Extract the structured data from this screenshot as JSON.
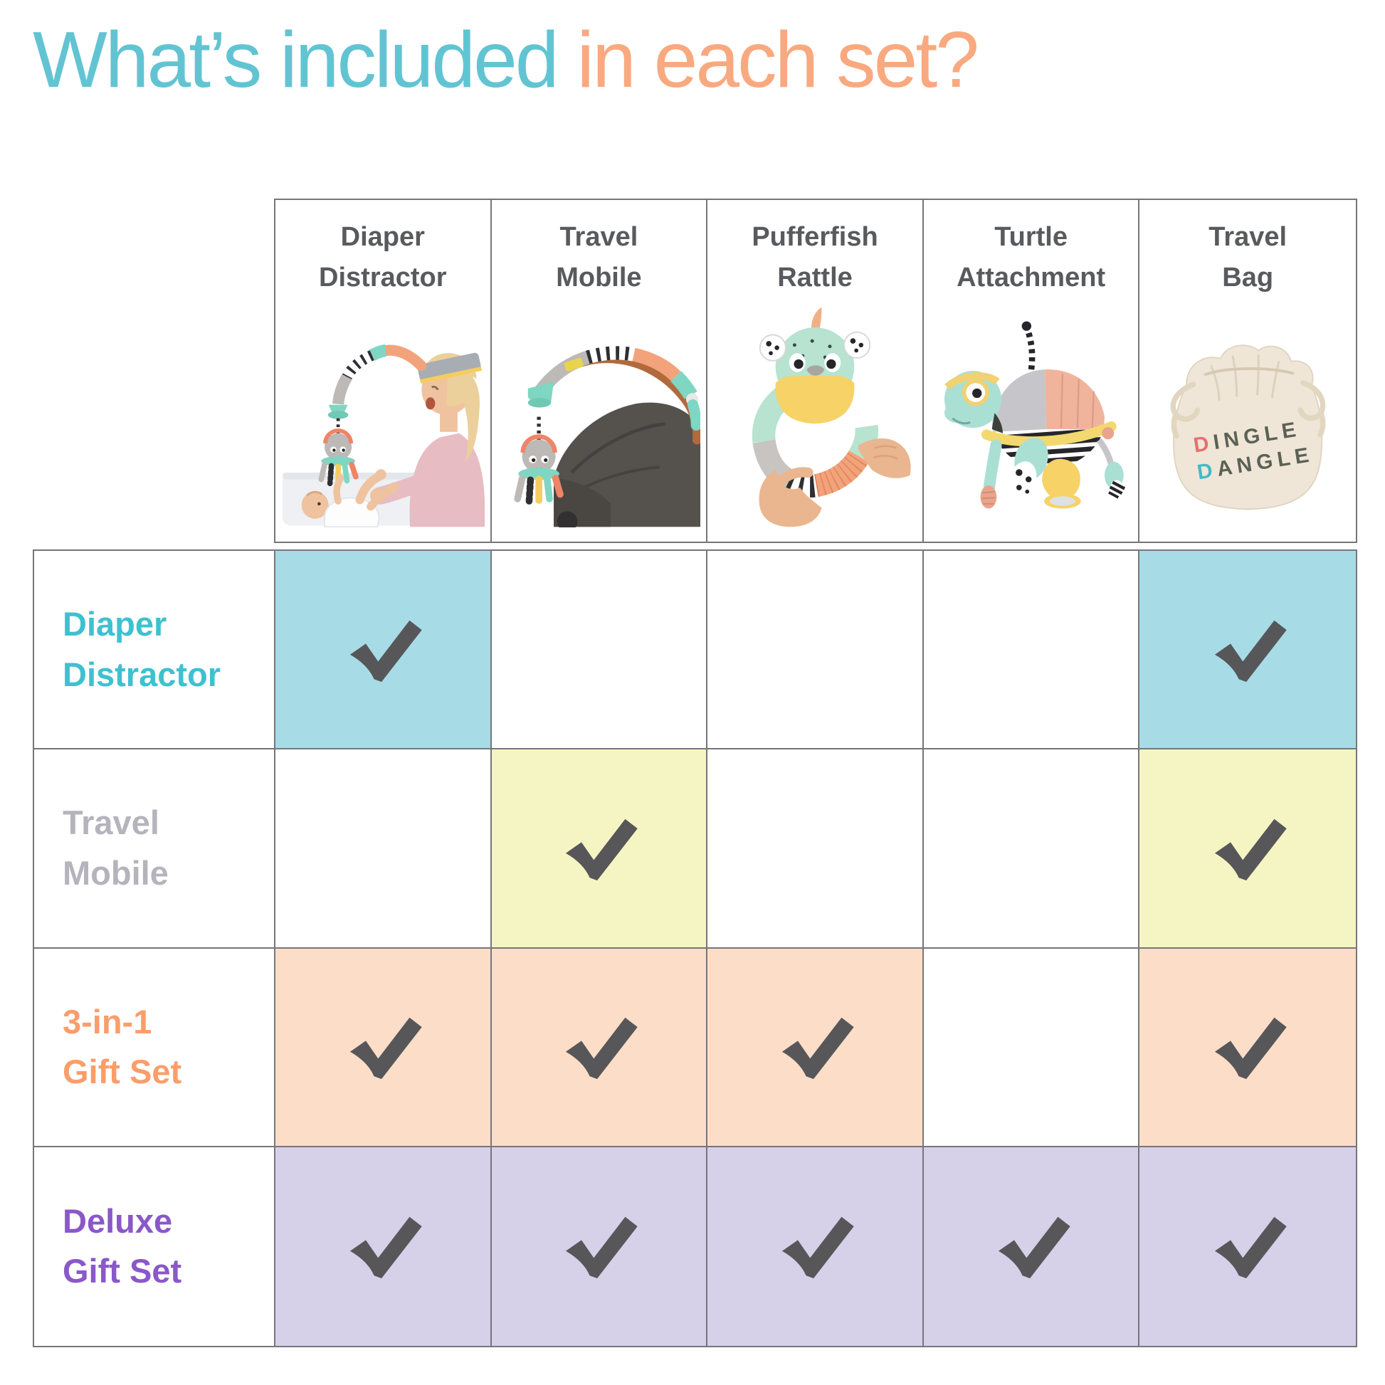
{
  "title": {
    "teal": "What’s included",
    "orange": " in each set?"
  },
  "style": {
    "grid_line_color": "#76767a",
    "header_label_color": "#595a5e",
    "title_teal": "#62c4d2",
    "title_orange": "#f9a97f",
    "background": "#ffffff"
  },
  "columns": [
    {
      "id": "diaper-distractor",
      "label": [
        "Diaper",
        "Distractor"
      ]
    },
    {
      "id": "travel-mobile",
      "label": [
        "Travel",
        "Mobile"
      ]
    },
    {
      "id": "pufferfish-rattle",
      "label": [
        "Pufferfish",
        "Rattle"
      ]
    },
    {
      "id": "turtle-attachment",
      "label": [
        "Turtle",
        "Attachment"
      ]
    },
    {
      "id": "travel-bag",
      "label": [
        "Travel",
        "Bag"
      ],
      "logo": [
        [
          "D",
          "INGLE"
        ],
        [
          "D",
          "ANGLE"
        ]
      ],
      "logo_colors": {
        "d1": "#e96d6d",
        "d2": "#45b9c5",
        "rest": "#5c6155"
      }
    }
  ],
  "rows": [
    {
      "label": [
        "Diaper",
        "Distractor"
      ],
      "label_color": "#3ec1cf",
      "cell_color": "#a7dce6",
      "included": [
        true,
        false,
        false,
        false,
        true
      ]
    },
    {
      "label": [
        "Travel",
        "Mobile"
      ],
      "label_color": "#b5b4bd",
      "cell_color": "#f5f5c4",
      "included": [
        false,
        true,
        false,
        false,
        true
      ]
    },
    {
      "label": [
        "3-in-1",
        "Gift Set"
      ],
      "label_color": "#f99e6b",
      "cell_color": "#fcdec8",
      "included": [
        true,
        true,
        true,
        false,
        true
      ]
    },
    {
      "label": [
        "Deluxe",
        "Gift Set"
      ],
      "label_color": "#8a58c9",
      "cell_color": "#d7d0e9",
      "included": [
        true,
        true,
        true,
        true,
        true
      ]
    }
  ],
  "check": {
    "icon": "check-icon",
    "color": "#57575a"
  },
  "chart_data": {
    "type": "table",
    "title": "What’s included in each set?",
    "columns": [
      "Diaper Distractor",
      "Travel Mobile",
      "Pufferfish Rattle",
      "Turtle Attachment",
      "Travel Bag"
    ],
    "rows": [
      "Diaper Distractor",
      "Travel Mobile",
      "3-in-1 Gift Set",
      "Deluxe Gift Set"
    ],
    "values": [
      [
        1,
        0,
        0,
        0,
        1
      ],
      [
        0,
        1,
        0,
        0,
        1
      ],
      [
        1,
        1,
        1,
        0,
        1
      ],
      [
        1,
        1,
        1,
        1,
        1
      ]
    ],
    "legend_position": "none",
    "grid": true
  }
}
